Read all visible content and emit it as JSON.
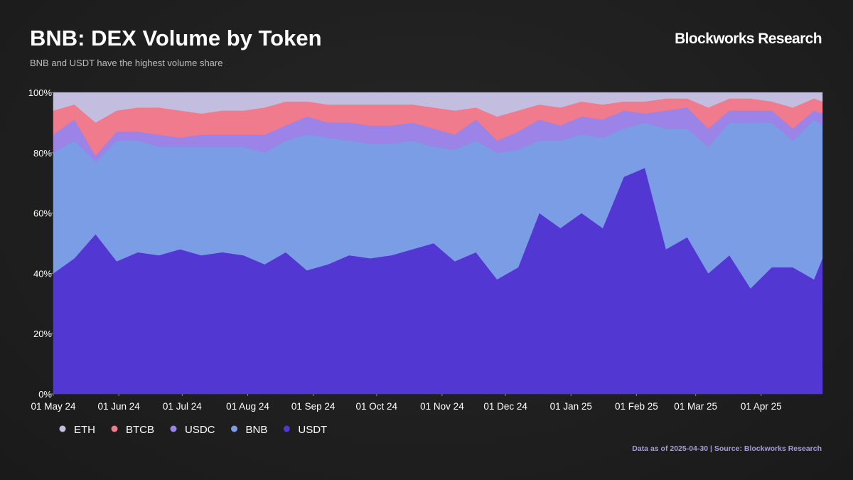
{
  "chart_data": {
    "type": "stacked_area",
    "title": "BNB: DEX Volume by Token",
    "subtitle": "BNB and USDT have the highest volume share",
    "brand": "Blockworks Research",
    "footnote": "Data as of 2025-04-30 | Source: Blockworks Research",
    "x": [
      "2024-05-01",
      "2024-05-11",
      "2024-05-21",
      "2024-05-31",
      "2024-06-10",
      "2024-06-20",
      "2024-06-30",
      "2024-07-10",
      "2024-07-20",
      "2024-07-30",
      "2024-08-09",
      "2024-08-19",
      "2024-08-29",
      "2024-09-08",
      "2024-09-18",
      "2024-09-28",
      "2024-10-08",
      "2024-10-18",
      "2024-10-28",
      "2024-11-07",
      "2024-11-17",
      "2024-11-27",
      "2024-12-07",
      "2024-12-17",
      "2024-12-27",
      "2025-01-06",
      "2025-01-16",
      "2025-01-26",
      "2025-02-05",
      "2025-02-15",
      "2025-02-25",
      "2025-03-07",
      "2025-03-17",
      "2025-03-27",
      "2025-04-06",
      "2025-04-16",
      "2025-04-26",
      "2025-04-30"
    ],
    "series": [
      {
        "name": "ETH",
        "color": "#c3bddf",
        "values": [
          6,
          4,
          10,
          6,
          5,
          5,
          6,
          7,
          6,
          6,
          5,
          3,
          3,
          4,
          4,
          4,
          4,
          4,
          5,
          6,
          5,
          8,
          6,
          4,
          5,
          3,
          4,
          3,
          3,
          2,
          2,
          5,
          2,
          2,
          3,
          5,
          2,
          3
        ]
      },
      {
        "name": "BTCB",
        "color": "#ef7b8c",
        "values": [
          8,
          5,
          11,
          7,
          8,
          9,
          9,
          7,
          8,
          8,
          9,
          8,
          5,
          6,
          6,
          7,
          7,
          6,
          7,
          8,
          4,
          8,
          7,
          5,
          6,
          5,
          5,
          3,
          4,
          4,
          3,
          7,
          4,
          4,
          3,
          7,
          4,
          4
        ]
      },
      {
        "name": "USDC",
        "color": "#9b83e8",
        "values": [
          6,
          7,
          2,
          3,
          3,
          4,
          3,
          4,
          4,
          4,
          6,
          5,
          6,
          5,
          6,
          6,
          6,
          6,
          6,
          5,
          7,
          4,
          6,
          7,
          5,
          6,
          6,
          6,
          3,
          6,
          7,
          6,
          4,
          4,
          4,
          4,
          3,
          4
        ]
      },
      {
        "name": "BNB",
        "color": "#7b9de6",
        "values": [
          40,
          39,
          24,
          40,
          37,
          36,
          34,
          36,
          35,
          36,
          37,
          37,
          45,
          42,
          38,
          38,
          37,
          36,
          32,
          37,
          37,
          42,
          39,
          24,
          29,
          26,
          30,
          16,
          15,
          40,
          36,
          42,
          44,
          55,
          48,
          42,
          53,
          44
        ]
      },
      {
        "name": "USDT",
        "color": "#5237d2",
        "values": [
          40,
          45,
          53,
          44,
          47,
          46,
          48,
          46,
          47,
          46,
          43,
          47,
          41,
          43,
          46,
          45,
          46,
          48,
          50,
          44,
          47,
          38,
          42,
          60,
          55,
          60,
          55,
          72,
          75,
          48,
          52,
          40,
          46,
          35,
          42,
          42,
          38,
          45
        ]
      }
    ],
    "xlim": [
      "2024-05-01",
      "2025-04-30"
    ],
    "xticks": [
      {
        "value": "2024-05-01",
        "label": "01 May 24"
      },
      {
        "value": "2024-06-01",
        "label": "01 Jun 24"
      },
      {
        "value": "2024-07-01",
        "label": "01 Jul 24"
      },
      {
        "value": "2024-08-01",
        "label": "01 Aug 24"
      },
      {
        "value": "2024-09-01",
        "label": "01 Sep 24"
      },
      {
        "value": "2024-10-01",
        "label": "01 Oct 24"
      },
      {
        "value": "2024-11-01",
        "label": "01 Nov 24"
      },
      {
        "value": "2024-12-01",
        "label": "01 Dec 24"
      },
      {
        "value": "2025-01-01",
        "label": "01 Jan 25"
      },
      {
        "value": "2025-02-01",
        "label": "01 Feb 25"
      },
      {
        "value": "2025-03-01",
        "label": "01 Mar 25"
      },
      {
        "value": "2025-04-01",
        "label": "01 Apr 25"
      }
    ],
    "ylim": [
      0,
      100
    ],
    "yticks": [
      {
        "value": 0,
        "label": "0%"
      },
      {
        "value": 20,
        "label": "20%"
      },
      {
        "value": 40,
        "label": "40%"
      },
      {
        "value": 60,
        "label": "60%"
      },
      {
        "value": 80,
        "label": "80%"
      },
      {
        "value": 100,
        "label": "100%"
      }
    ]
  }
}
